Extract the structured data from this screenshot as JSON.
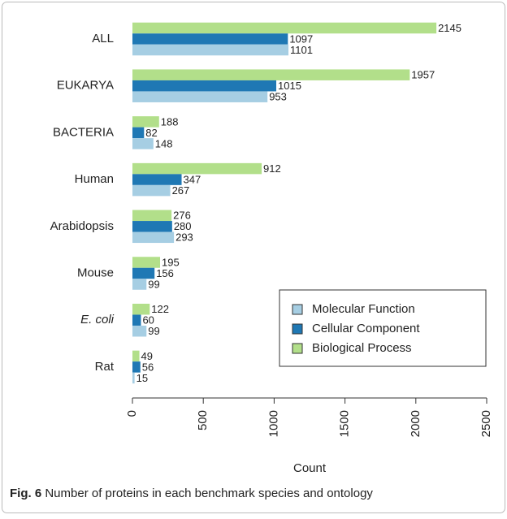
{
  "chart_data": {
    "type": "barh",
    "categories": [
      "ALL",
      "EUKARYA",
      "BACTERIA",
      "Human",
      "Arabidopsis",
      "Mouse",
      "E. coli",
      "Rat"
    ],
    "series": [
      {
        "name": "Biological Process",
        "color": "#b2df8a",
        "values": [
          2145,
          1957,
          188,
          912,
          276,
          195,
          122,
          49
        ]
      },
      {
        "name": "Cellular Component",
        "color": "#1f78b4",
        "values": [
          1097,
          1015,
          82,
          347,
          280,
          156,
          60,
          56
        ]
      },
      {
        "name": "Molecular Function",
        "color": "#a6cee3",
        "values": [
          1101,
          953,
          148,
          267,
          293,
          99,
          99,
          15
        ]
      }
    ],
    "legend_order": [
      2,
      1,
      0
    ],
    "xlabel": "Count",
    "xlim": [
      0,
      2500
    ],
    "xticks": [
      0,
      500,
      1000,
      1500,
      2000,
      2500
    ],
    "legend": "lower right",
    "caption": {
      "label": "Fig. 6",
      "text": "Number of proteins in each benchmark species and ontology"
    }
  }
}
